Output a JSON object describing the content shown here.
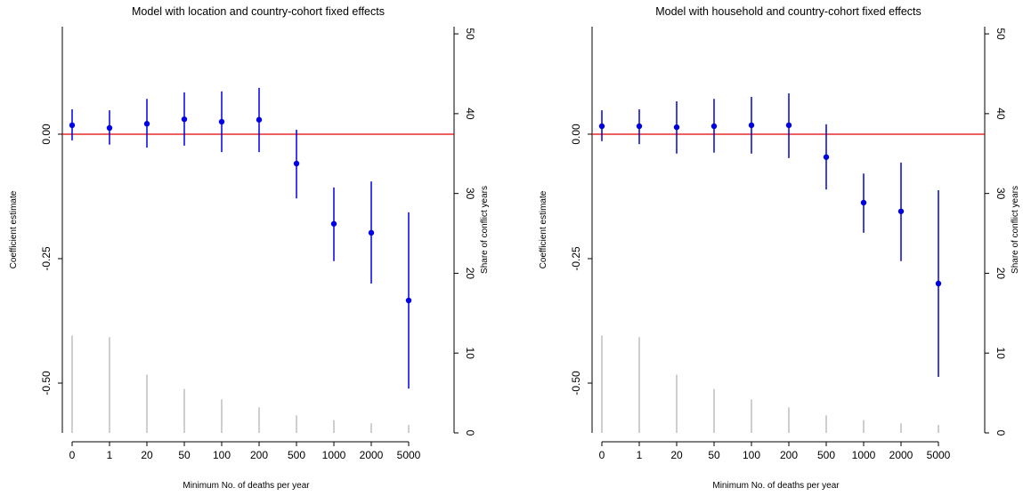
{
  "chart_data": [
    {
      "type": "errorbar",
      "title": "Model with location and country-cohort fixed effects",
      "xlabel": "Minimum No. of deaths per year",
      "ylabel": "Coefficient estimate",
      "y2label": "Share of conflict years",
      "categories": [
        "0",
        "1",
        "20",
        "50",
        "100",
        "200",
        "500",
        "1000",
        "2000",
        "5000"
      ],
      "values": [
        0.018,
        0.0125,
        0.021,
        0.03,
        0.025,
        0.029,
        -0.059,
        -0.18,
        -0.198,
        -0.334
      ],
      "lower": [
        -0.0125,
        -0.021,
        -0.027,
        -0.023,
        -0.036,
        -0.036,
        -0.129,
        -0.255,
        -0.3,
        -0.511
      ],
      "upper": [
        0.05,
        0.048,
        0.071,
        0.084,
        0.086,
        0.093,
        0.009,
        -0.107,
        -0.095,
        -0.157
      ],
      "color": "#0000e6",
      "bars": {
        "values": [
          12.2,
          12.0,
          7.3,
          5.5,
          4.2,
          3.2,
          2.2,
          1.6,
          1.2,
          1.0
        ],
        "color": "#bdbdbd",
        "axis": "y2"
      },
      "hline": 0,
      "hline_color": "#e00000",
      "ylim": [
        -0.6,
        0.216
      ],
      "yticks": [
        {
          "value": 0,
          "label": "0.00"
        },
        {
          "value": -0.25,
          "label": "-0.25"
        },
        {
          "value": -0.5,
          "label": "-0.50"
        }
      ],
      "y2lim": [
        0,
        50.9
      ],
      "y2ticks": [
        0,
        10,
        20,
        30,
        40,
        50
      ]
    },
    {
      "type": "errorbar",
      "title": "Model with household and country-cohort fixed effects",
      "xlabel": "Minimum No. of deaths per year",
      "ylabel": "Coefficient estimate",
      "y2label": "Share of conflict years",
      "categories": [
        "0",
        "1",
        "20",
        "50",
        "100",
        "200",
        "500",
        "1000",
        "2000",
        "5000"
      ],
      "values": [
        0.016,
        0.016,
        0.014,
        0.016,
        0.018,
        0.018,
        -0.046,
        -0.1375,
        -0.155,
        -0.3
      ],
      "lower": [
        -0.014,
        -0.02,
        -0.039,
        -0.037,
        -0.039,
        -0.048,
        -0.111,
        -0.198,
        -0.255,
        -0.4875
      ],
      "upper": [
        0.048,
        0.05,
        0.066,
        0.071,
        0.075,
        0.082,
        0.02,
        -0.079,
        -0.057,
        -0.1125
      ],
      "color": "#0000e6",
      "bars": {
        "values": [
          12.2,
          12.0,
          7.3,
          5.5,
          4.2,
          3.2,
          2.2,
          1.6,
          1.2,
          1.0
        ],
        "color": "#bdbdbd",
        "axis": "y2"
      },
      "hline": 0,
      "hline_color": "#e00000",
      "ylim": [
        -0.6,
        0.216
      ],
      "yticks": [
        {
          "value": 0,
          "label": "0.00"
        },
        {
          "value": -0.25,
          "label": "-0.25"
        },
        {
          "value": -0.5,
          "label": "-0.50"
        }
      ],
      "y2lim": [
        0,
        50.9
      ],
      "y2ticks": [
        0,
        10,
        20,
        30,
        40,
        50
      ]
    }
  ]
}
